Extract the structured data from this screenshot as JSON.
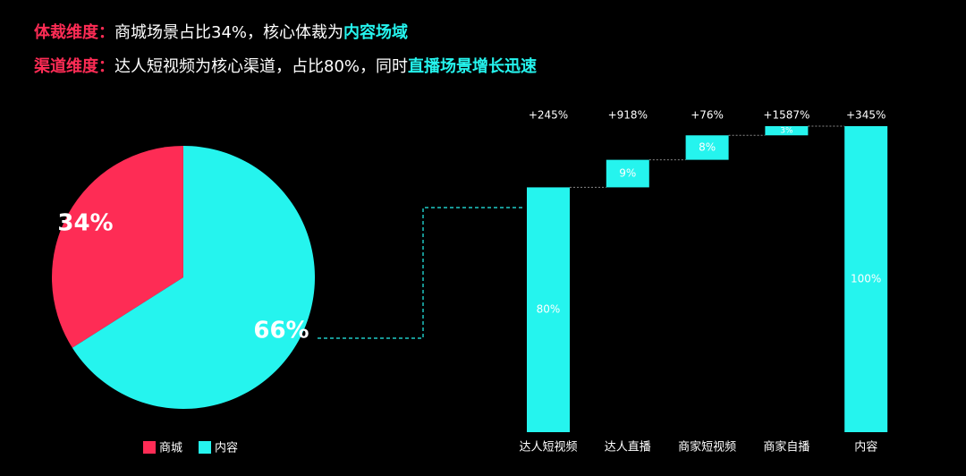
{
  "header": {
    "lines": [
      {
        "label": "体裁维度：",
        "text": "商城场景占比34%，核心体裁为",
        "highlight": "内容场域"
      },
      {
        "label": "渠道维度：",
        "text": "达人短视频为核心渠道，占比80%，同时",
        "highlight": "直播场景增长迅速"
      }
    ]
  },
  "chart_data": [
    {
      "type": "pie",
      "categories": [
        "商城",
        "内容"
      ],
      "values": [
        34,
        66
      ],
      "value_labels": [
        "34%",
        "66%"
      ],
      "colors": [
        "#fe2c55",
        "#25f4ee"
      ],
      "counterclock": true,
      "legend": "bottom"
    },
    {
      "type": "waterfall",
      "categories": [
        "达人短视频",
        "达人直播",
        "商家短视频",
        "商家自播",
        "内容"
      ],
      "values": [
        80,
        9,
        8,
        3,
        100
      ],
      "value_labels": [
        "80%",
        "9%",
        "8%",
        "3%",
        "100%"
      ],
      "growth_labels": [
        "+245%",
        "+918%",
        "+76%",
        "+1587%",
        "+345%"
      ],
      "is_total": [
        false,
        false,
        false,
        false,
        true
      ],
      "color": "#25f4ee"
    }
  ]
}
